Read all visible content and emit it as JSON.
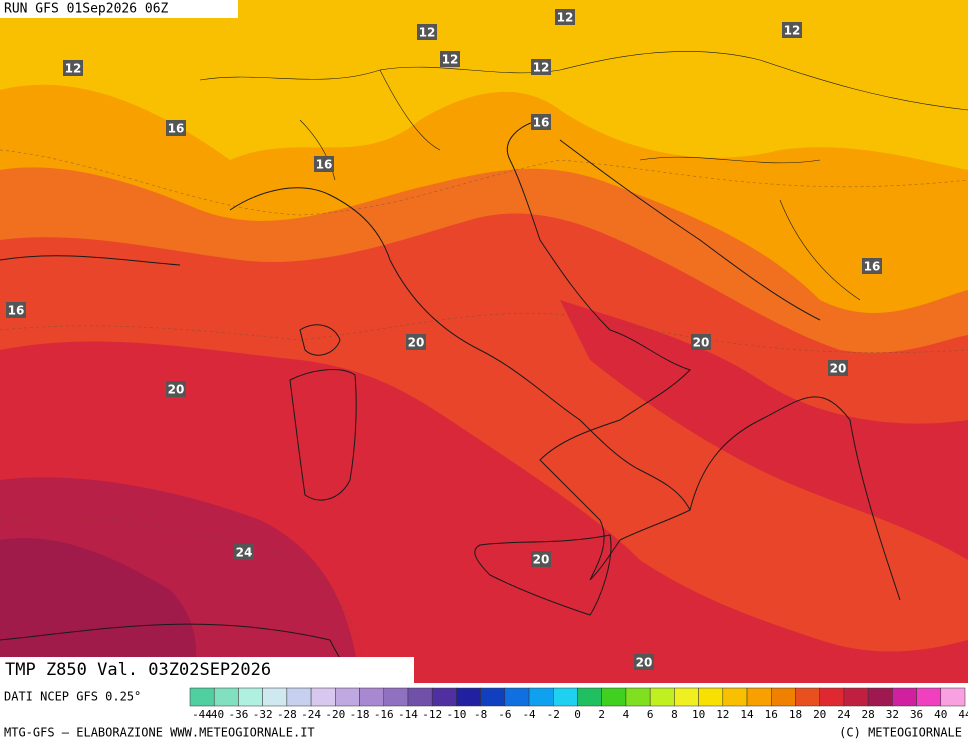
{
  "header": {
    "run": "RUN GFS 01Sep2026 06Z"
  },
  "map": {
    "contour_labels": [
      12,
      12,
      12,
      12,
      12,
      12,
      16,
      16,
      16,
      16,
      16,
      20,
      20,
      20,
      20,
      24,
      20,
      20
    ]
  },
  "footer": {
    "field": "TMP Z850 Val. 03Z02SEP2026",
    "source": "DATI NCEP GFS 0.25°",
    "credit_left": "MTG-GFS — ELABORAZIONE WWW.METEOGIORNALE.IT",
    "credit_right": "(C) METEOGIORNALE"
  },
  "colorbar": {
    "ticks": [
      -44,
      -40,
      -36,
      -32,
      -28,
      -24,
      -20,
      -18,
      -16,
      -14,
      -12,
      -10,
      -8,
      -6,
      -4,
      -2,
      0,
      2,
      4,
      6,
      8,
      10,
      12,
      14,
      16,
      18,
      20,
      24,
      28,
      32,
      36,
      40,
      44
    ],
    "colors": [
      "#50d0a0",
      "#80e0c0",
      "#b0f0e0",
      "#d0e8f0",
      "#c8d0f0",
      "#d8c8f0",
      "#c0a8e0",
      "#a888d0",
      "#9070c0",
      "#7050a8",
      "#5030a0",
      "#2020a0",
      "#1040c0",
      "#1070e0",
      "#10a0f0",
      "#20d0f0",
      "#20c060",
      "#40d020",
      "#80e020",
      "#c0f020",
      "#f0f020",
      "#f8e000",
      "#f8c000",
      "#f8a000",
      "#f08000",
      "#e85020",
      "#e02830",
      "#c02040",
      "#a01850",
      "#d020a0",
      "#f040c0",
      "#f8a0e0"
    ]
  }
}
